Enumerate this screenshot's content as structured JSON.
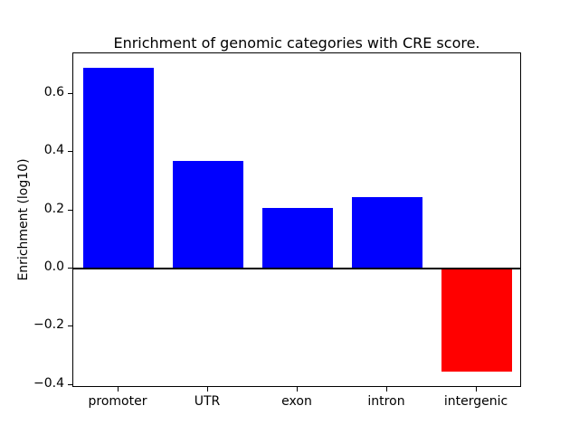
{
  "chart_data": {
    "type": "bar",
    "title": "Enrichment of genomic categories with CRE score.",
    "ylabel": "Enrichment (log10)",
    "xlabel": "",
    "categories": [
      "promoter",
      "UTR",
      "exon",
      "intron",
      "intergenic"
    ],
    "values": [
      0.69,
      0.37,
      0.21,
      0.245,
      -0.355
    ],
    "bar_colors": [
      "#0000ff",
      "#0000ff",
      "#0000ff",
      "#0000ff",
      "#ff0000"
    ],
    "positive_color": "#0000ff",
    "negative_color": "#ff0000",
    "ylim": [
      -0.41,
      0.74
    ],
    "yticks": [
      -0.4,
      -0.2,
      0.0,
      0.2,
      0.4,
      0.6
    ],
    "grid": false,
    "legend": false,
    "zero_line": true,
    "background_color": "#ffffff",
    "axis_color": "#000000"
  }
}
